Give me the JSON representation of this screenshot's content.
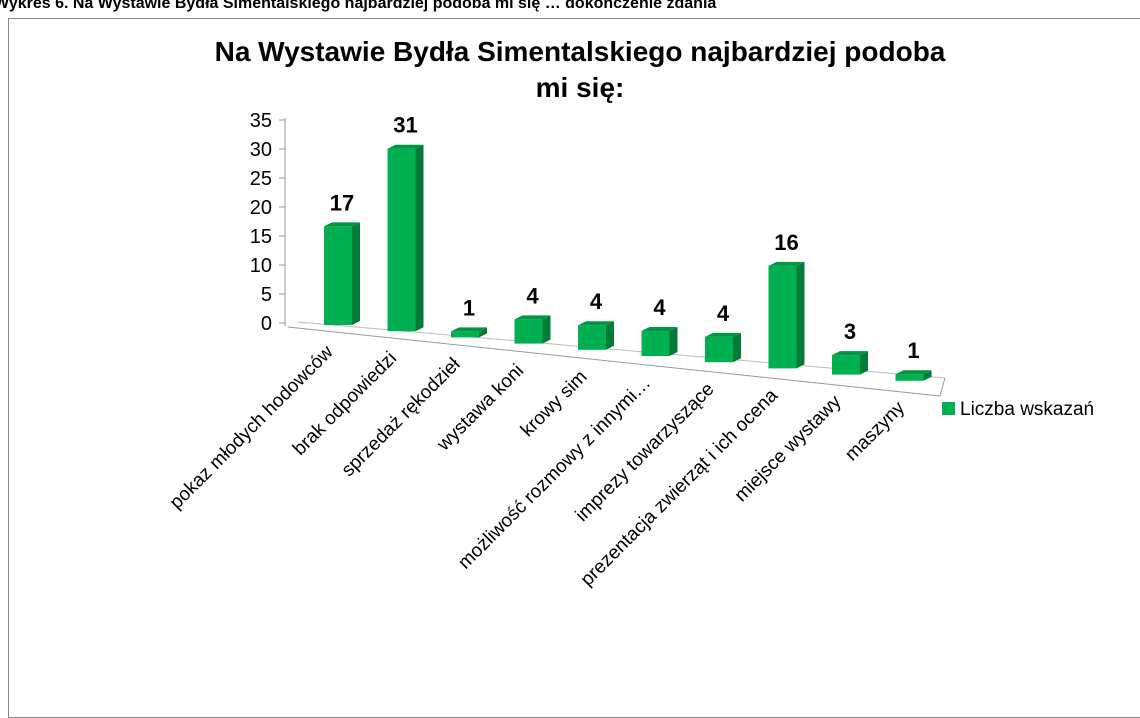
{
  "caption": "Wykres 6. Na Wystawie Bydła Simentalskiego najbardziej podoba mi się … dokończenie zdania",
  "chart_data": {
    "type": "bar3d",
    "title": "Na Wystawie Bydła Simentalskiego najbardziej podoba mi się:",
    "categories": [
      "pokaz młodych hodowców",
      "brak odpowiedzi",
      "sprzedaż rękodzieł",
      "wystawa koni",
      "krowy sim",
      "możliwość rozmowy z innymi…",
      "imprezy towarzyszące",
      "prezentacja zwierząt i ich ocena",
      "miejsce wystawy",
      "maszyny"
    ],
    "series": [
      {
        "name": "Liczba wskazań",
        "color": "#00b050",
        "values": [
          17,
          31,
          1,
          4,
          4,
          4,
          4,
          16,
          3,
          1
        ]
      }
    ],
    "ylim": [
      0,
      35
    ],
    "yticks": [
      0,
      5,
      10,
      15,
      20,
      25,
      30,
      35
    ],
    "legend": "right"
  }
}
